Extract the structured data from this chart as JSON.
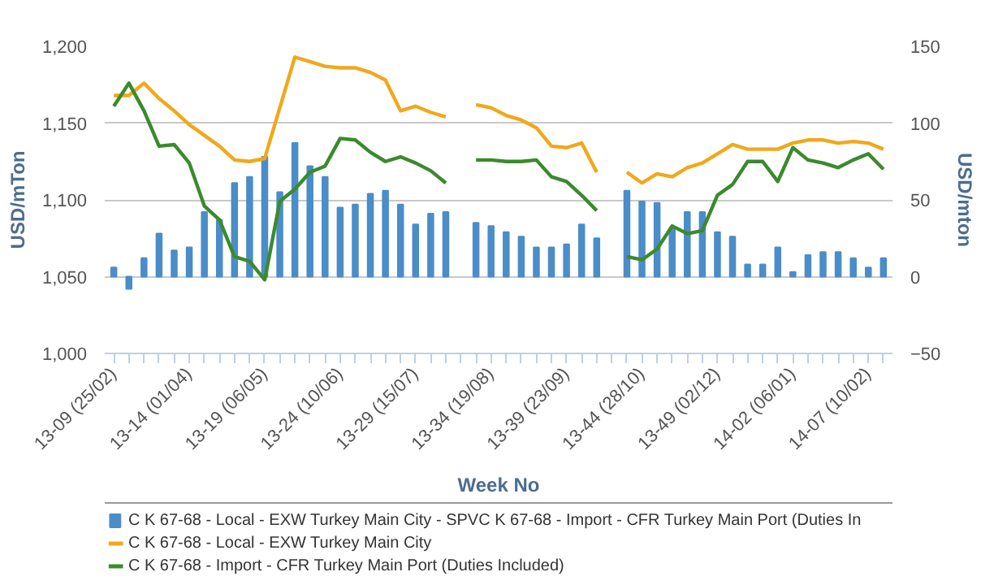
{
  "chart_data": {
    "type": "line",
    "xlabel": "Week No",
    "ylabel": "USD/mTon",
    "y2label": "USD/mton",
    "categories": [
      "13-09 (25/02)",
      null,
      null,
      null,
      null,
      "13-14 (01/04)",
      null,
      null,
      null,
      null,
      "13-19 (06/05)",
      null,
      null,
      null,
      null,
      "13-24 (10/06)",
      null,
      null,
      null,
      null,
      "13-29 (15/07)",
      null,
      null,
      null,
      null,
      "13-34 (19/08)",
      null,
      null,
      null,
      null,
      "13-39 (23/09)",
      null,
      null,
      null,
      null,
      "13-44 (28/10)",
      null,
      null,
      null,
      null,
      "13-49 (02/12)",
      null,
      null,
      null,
      null,
      "14-02 (06/01)",
      null,
      null,
      null,
      null,
      "14-07 (10/02)",
      null
    ],
    "ylim": [
      1000,
      1200
    ],
    "yticks": [
      {
        "value": 1000,
        "label": "1,000"
      },
      {
        "value": 1050,
        "label": "1,050"
      },
      {
        "value": 1100,
        "label": "1,100"
      },
      {
        "value": 1150,
        "label": "1,150"
      },
      {
        "value": 1200,
        "label": "1,200"
      }
    ],
    "y2lim": [
      -50,
      150
    ],
    "y2ticks": [
      -50,
      0,
      50,
      100,
      150
    ],
    "grid": "y",
    "legend": "bottom",
    "series": [
      {
        "name": "C K 67-68 - Local - EXW Turkey Main City - SPVC K 67-68 - Import - CFR Turkey Main Port (Duties In",
        "type": "bar",
        "axis": "y2",
        "color": "#4a8dc8",
        "values": [
          6,
          -8,
          12,
          28,
          17,
          19,
          42,
          37,
          61,
          65,
          78,
          55,
          87,
          72,
          65,
          45,
          47,
          54,
          56,
          47,
          34,
          41,
          42,
          null,
          35,
          33,
          29,
          26,
          19,
          19,
          21,
          34,
          25,
          null,
          56,
          49,
          48,
          32,
          42,
          42,
          29,
          26,
          8,
          8,
          19,
          3,
          14,
          16,
          16,
          12,
          6,
          12
        ]
      },
      {
        "name": "C K 67-68 - Local - EXW Turkey Main City",
        "color": "#f0a81c",
        "values": [
          1168,
          1168,
          1176,
          1166,
          1158,
          1149,
          1142,
          1135,
          1126,
          1125,
          1127,
          1160,
          1193,
          1190,
          1187,
          1186,
          1186,
          1183,
          1178,
          1158,
          1161,
          1157,
          1154,
          null,
          1162,
          1160,
          1155,
          1152,
          1147,
          1135,
          1134,
          1137,
          1118,
          null,
          1118,
          1111,
          1117,
          1115,
          1121,
          1124,
          1130,
          1136,
          1133,
          1133,
          1133,
          1137,
          1139,
          1139,
          1137,
          1138,
          1137,
          1133
        ]
      },
      {
        "name": "C K 67-68 - Import - CFR Turkey Main Port (Duties Included)",
        "color": "#3b8a2e",
        "values": [
          1161,
          1176,
          1158,
          1135,
          1136,
          1124,
          1096,
          1087,
          1063,
          1060,
          1048,
          1099,
          1107,
          1118,
          1122,
          1140,
          1139,
          1131,
          1125,
          1128,
          1124,
          1119,
          1111,
          null,
          1126,
          1126,
          1125,
          1125,
          1126,
          1115,
          1112,
          1103,
          1093,
          null,
          1063,
          1061,
          1068,
          1083,
          1078,
          1080,
          1103,
          1110,
          1125,
          1125,
          1112,
          1134,
          1126,
          1124,
          1121,
          1126,
          1130,
          1120
        ]
      }
    ]
  }
}
